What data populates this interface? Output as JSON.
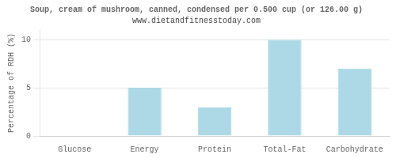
{
  "chart_data": {
    "type": "bar",
    "title": "Soup, cream of mushroom, canned, condensed per 0.500 cup (or 126.00 g)",
    "subtitle": "www.dietandfitnesstoday.com",
    "ylabel": "Percentage of RDH (%)",
    "categories": [
      "Glucose",
      "Energy",
      "Protein",
      "Total-Fat",
      "Carbohydrate"
    ],
    "values": [
      0,
      5,
      3,
      10,
      7
    ],
    "color": "#add8e6",
    "ylim": [
      0,
      11
    ],
    "yticks": [
      0,
      5,
      10
    ],
    "grid": true
  }
}
